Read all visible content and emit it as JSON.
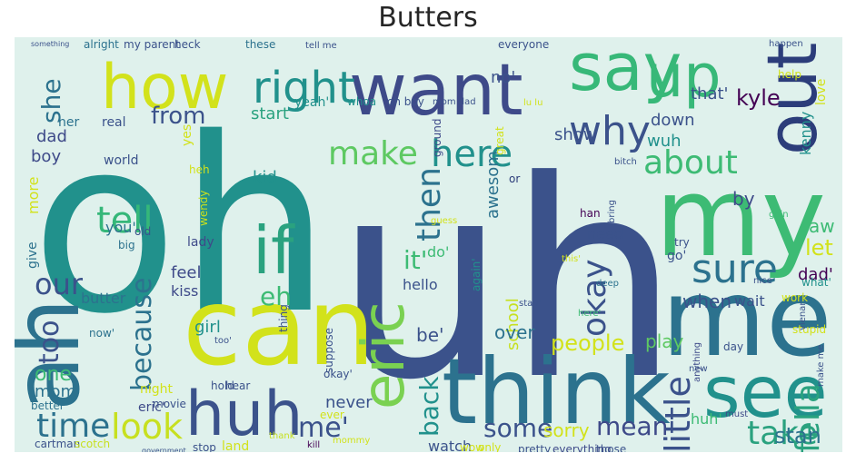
{
  "title": "Butters",
  "background": "#dff1ec",
  "palette": [
    "#440154",
    "#3b528b",
    "#21918c",
    "#5ec962",
    "#d2e21b",
    "#fde725"
  ],
  "words": [
    {
      "text": "uh",
      "color": "#3b528b"
    },
    {
      "text": "oh",
      "color": "#21918c"
    },
    {
      "text": "can",
      "color": "#d2e21b"
    },
    {
      "text": "think",
      "color": "#2c728e"
    },
    {
      "text": "me",
      "color": "#2c728e"
    },
    {
      "text": "my",
      "color": "#3dbb74"
    },
    {
      "text": "ah",
      "color": "#2c728e"
    },
    {
      "text": "want",
      "color": "#3e4a89"
    },
    {
      "text": "how",
      "color": "#d2e21b"
    },
    {
      "text": "say",
      "color": "#37b878"
    },
    {
      "text": "up",
      "color": "#37b878"
    },
    {
      "text": "out",
      "color": "#2c3d7a"
    },
    {
      "text": "if",
      "color": "#2aa27f"
    },
    {
      "text": "huh",
      "color": "#3b528b"
    },
    {
      "text": "eric",
      "color": "#7ad151"
    },
    {
      "text": "see",
      "color": "#21918c"
    },
    {
      "text": "right",
      "color": "#21918c"
    },
    {
      "text": "make",
      "color": "#5ec962"
    },
    {
      "text": "here",
      "color": "#21918c"
    },
    {
      "text": "why",
      "color": "#3b528b"
    },
    {
      "text": "about",
      "color": "#3dbb74"
    },
    {
      "text": "sure",
      "color": "#2c728e"
    },
    {
      "text": "tell",
      "color": "#35b779"
    },
    {
      "text": "time",
      "color": "#2c728e"
    },
    {
      "text": "look",
      "color": "#c7e020"
    },
    {
      "text": "fella",
      "color": "#2aa27f"
    },
    {
      "text": "take",
      "color": "#2aa27f"
    },
    {
      "text": "some",
      "color": "#3b528b"
    },
    {
      "text": "mean",
      "color": "#3e4a89"
    },
    {
      "text": "little",
      "color": "#3b528b"
    },
    {
      "text": "then",
      "color": "#2c728e"
    },
    {
      "text": "okay",
      "color": "#3b528b"
    },
    {
      "text": "back",
      "color": "#21918c"
    },
    {
      "text": "because",
      "color": "#2c728e"
    },
    {
      "text": "our",
      "color": "#3b528b"
    },
    {
      "text": "too",
      "color": "#3b528b"
    },
    {
      "text": "she",
      "color": "#2c728e"
    },
    {
      "text": "from",
      "color": "#3b528b"
    },
    {
      "text": "it'",
      "color": "#3dbb74"
    },
    {
      "text": "eh",
      "color": "#3dbb74"
    },
    {
      "text": "stan",
      "color": "#2c728e"
    },
    {
      "text": "me'",
      "color": "#3b528b"
    },
    {
      "text": "people",
      "color": "#d2e21b"
    },
    {
      "text": "sorry",
      "color": "#d2e21b"
    },
    {
      "text": "kyle",
      "color": "#440154"
    },
    {
      "text": "when",
      "color": "#3b528b"
    },
    {
      "text": "let",
      "color": "#d2e21b"
    },
    {
      "text": "one",
      "color": "#3dbb74"
    },
    {
      "text": "mom",
      "color": "#2c728e"
    },
    {
      "text": "dad",
      "color": "#3e4a89"
    },
    {
      "text": "boy",
      "color": "#3e4a89"
    },
    {
      "text": "kid",
      "color": "#21918c"
    },
    {
      "text": "school",
      "color": "#c7e020"
    },
    {
      "text": "by",
      "color": "#3e4a89"
    },
    {
      "text": "aw",
      "color": "#3dbb74"
    },
    {
      "text": "wait",
      "color": "#3b528b"
    },
    {
      "text": "dad'",
      "color": "#440154"
    },
    {
      "text": "show",
      "color": "#3b528b"
    },
    {
      "text": "down",
      "color": "#3b528b"
    },
    {
      "text": "wuh",
      "color": "#21918c"
    },
    {
      "text": "that'",
      "color": "#3b528b"
    },
    {
      "text": "watch",
      "color": "#3b528b"
    },
    {
      "text": "never",
      "color": "#3b528b"
    },
    {
      "text": "over",
      "color": "#2c728e"
    },
    {
      "text": "hello",
      "color": "#3b528b"
    },
    {
      "text": "butter",
      "color": "#2c728e"
    },
    {
      "text": "feel",
      "color": "#3e4a89"
    },
    {
      "text": "kiss",
      "color": "#3e4a89"
    },
    {
      "text": "need",
      "color": "#3b528b"
    },
    {
      "text": "you'",
      "color": "#2c728e"
    },
    {
      "text": "play",
      "color": "#5ec962"
    },
    {
      "text": "huh'",
      "color": "#3dbb74"
    },
    {
      "text": "more",
      "color": "#d2e21b"
    },
    {
      "text": "give",
      "color": "#2c728e"
    },
    {
      "text": "girl",
      "color": "#21918c"
    },
    {
      "text": "be'",
      "color": "#3b528b"
    },
    {
      "text": "yes",
      "color": "#d2e21b"
    },
    {
      "text": "awesom",
      "color": "#2c728e"
    },
    {
      "text": "kenny",
      "color": "#21918c"
    },
    {
      "text": "love",
      "color": "#d2e21b"
    },
    {
      "text": "no'",
      "color": "#3b528b"
    },
    {
      "text": "start",
      "color": "#2aa27f"
    },
    {
      "text": "yeah'",
      "color": "#21918c"
    },
    {
      "text": "her",
      "color": "#2c728e"
    },
    {
      "text": "real",
      "color": "#3b528b"
    },
    {
      "text": "night",
      "color": "#d2e21b"
    },
    {
      "text": "eric'",
      "color": "#3e4a89"
    },
    {
      "text": "better",
      "color": "#2c728e"
    },
    {
      "text": "movie",
      "color": "#3b528b"
    },
    {
      "text": "land",
      "color": "#d2e21b"
    },
    {
      "text": "stop",
      "color": "#3b528b"
    },
    {
      "text": "pretty",
      "color": "#3b528b"
    },
    {
      "text": "everything",
      "color": "#3e4a89"
    },
    {
      "text": "those",
      "color": "#3b528b"
    },
    {
      "text": "wow",
      "color": "#d2e21b"
    },
    {
      "text": "only",
      "color": "#d2e21b"
    },
    {
      "text": "cartman",
      "color": "#3b528b"
    },
    {
      "text": "scotch",
      "color": "#c7e020"
    },
    {
      "text": "ever",
      "color": "#d2e21b"
    },
    {
      "text": "hold",
      "color": "#3b528b"
    },
    {
      "text": "hear",
      "color": "#3b528b"
    },
    {
      "text": "do'",
      "color": "#3dbb74"
    },
    {
      "text": "again'",
      "color": "#21918c"
    },
    {
      "text": "okay'",
      "color": "#3b528b"
    },
    {
      "text": "suppose",
      "color": "#3b528b"
    },
    {
      "text": "thing",
      "color": "#3b528b"
    },
    {
      "text": "world",
      "color": "#3b528b"
    },
    {
      "text": "lady",
      "color": "#3e4a89"
    },
    {
      "text": "wendy",
      "color": "#c7e020"
    },
    {
      "text": "big",
      "color": "#2c728e"
    },
    {
      "text": "old",
      "color": "#3b528b"
    },
    {
      "text": "heh",
      "color": "#d2e21b"
    },
    {
      "text": "now'",
      "color": "#2c728e"
    },
    {
      "text": "bitch",
      "color": "#3b528b"
    },
    {
      "text": "tell me",
      "color": "#3b528b"
    },
    {
      "text": "my parent",
      "color": "#3b528b"
    },
    {
      "text": "alright",
      "color": "#2c728e"
    },
    {
      "text": "heck",
      "color": "#3b528b"
    },
    {
      "text": "these",
      "color": "#2c728e"
    },
    {
      "text": "everyone",
      "color": "#3b528b"
    },
    {
      "text": "something",
      "color": "#3b528b"
    },
    {
      "text": "oh boy",
      "color": "#3b528b"
    },
    {
      "text": "whoa",
      "color": "#21918c"
    },
    {
      "text": "mom dad",
      "color": "#3b528b"
    },
    {
      "text": "try",
      "color": "#3b528b"
    },
    {
      "text": "go'",
      "color": "#3b528b"
    },
    {
      "text": "this'",
      "color": "#d2e21b"
    },
    {
      "text": "bring",
      "color": "#3b528b"
    },
    {
      "text": "guess",
      "color": "#d2e21b"
    },
    {
      "text": "han",
      "color": "#440154"
    },
    {
      "text": "anything",
      "color": "#3e4a89"
    },
    {
      "text": "day",
      "color": "#3b528b"
    },
    {
      "text": "must",
      "color": "#3e4a89"
    },
    {
      "text": "stupid",
      "color": "#d2e21b"
    },
    {
      "text": "what'",
      "color": "#21918c"
    },
    {
      "text": "nice",
      "color": "#3b528b"
    },
    {
      "text": "work",
      "color": "#d2e21b"
    },
    {
      "text": "goin",
      "color": "#3dbb74"
    },
    {
      "text": "here'",
      "color": "#3dbb74"
    },
    {
      "text": "stan'",
      "color": "#3b528b"
    },
    {
      "text": "new",
      "color": "#3b528b"
    },
    {
      "text": "thank",
      "color": "#c7e020"
    },
    {
      "text": "kill",
      "color": "#440154"
    },
    {
      "text": "mommy",
      "color": "#d2e21b"
    },
    {
      "text": "government",
      "color": "#3b528b"
    },
    {
      "text": "make me",
      "color": "#3b528b"
    },
    {
      "text": "vienar",
      "color": "#3b528b"
    },
    {
      "text": "great",
      "color": "#d2e21b"
    },
    {
      "text": "or",
      "color": "#2c3d7a"
    },
    {
      "text": "ground",
      "color": "#3e4a89"
    },
    {
      "text": "deep",
      "color": "#2c728e"
    },
    {
      "text": "help",
      "color": "#d2e21b"
    },
    {
      "text": "happen",
      "color": "#3b528b"
    },
    {
      "text": "too'",
      "color": "#3b528b"
    },
    {
      "text": "lu lu",
      "color": "#d2e21b"
    }
  ]
}
